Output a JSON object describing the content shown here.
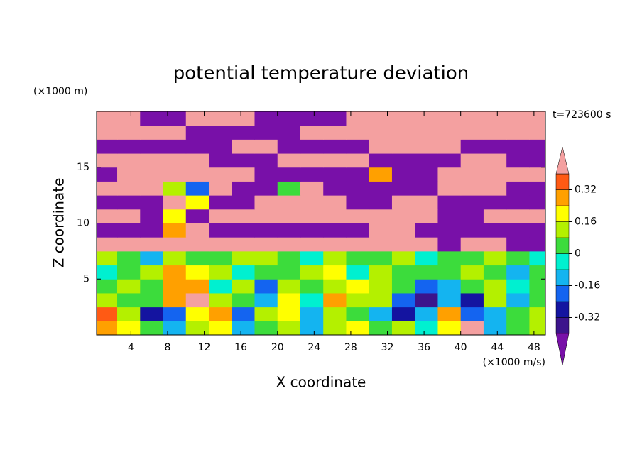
{
  "chart_data": {
    "type": "contour",
    "title": "potential temperature deviation",
    "x_label": "X coordinate",
    "y_label": "Z coordinate",
    "x_unit": "(×1000 m/s)",
    "y_unit": "(×1000 m)",
    "annotation": "t=723600 s",
    "xlim": [
      0.25,
      49.25
    ],
    "ylim": [
      0,
      20
    ],
    "xticks": [
      4,
      8,
      12,
      16,
      20,
      24,
      28,
      32,
      36,
      40,
      44,
      48
    ],
    "yticks": [
      5,
      10,
      15
    ],
    "x": [
      1.25,
      3.75,
      6.25,
      8.75,
      11.25,
      13.75,
      16.25,
      18.75,
      21.25,
      23.75,
      26.25,
      28.75,
      31.25,
      33.75,
      36.25,
      38.75,
      41.25,
      43.75,
      46.25,
      48.75
    ],
    "y": [
      0.625,
      1.875,
      3.125,
      4.375,
      5.625,
      6.875,
      8.125,
      9.375,
      10.625,
      11.875,
      13.125,
      14.375,
      15.625,
      16.875,
      18.125,
      19.375
    ],
    "z": [
      [
        0.3,
        0.2,
        0.05,
        -0.1,
        0.1,
        0.2,
        -0.1,
        0.05,
        0.15,
        -0.1,
        0.1,
        0.2,
        0.0,
        0.1,
        -0.05,
        0.2,
        0.5,
        -0.1,
        0.05,
        0.1
      ],
      [
        0.35,
        0.15,
        -0.25,
        -0.2,
        0.2,
        0.25,
        -0.2,
        0.1,
        0.2,
        -0.15,
        0.15,
        0.05,
        -0.1,
        -0.25,
        -0.1,
        0.3,
        -0.2,
        -0.1,
        0.05,
        0.1
      ],
      [
        0.15,
        0.05,
        0.0,
        0.25,
        0.45,
        0.1,
        0.0,
        -0.1,
        0.2,
        -0.05,
        0.25,
        0.1,
        0.15,
        -0.2,
        -0.35,
        -0.1,
        -0.25,
        0.1,
        -0.1,
        0.05
      ],
      [
        0.05,
        0.1,
        0.0,
        0.3,
        0.3,
        -0.05,
        0.1,
        -0.2,
        0.1,
        0.0,
        0.15,
        0.2,
        0.1,
        0.0,
        -0.2,
        -0.15,
        0.0,
        0.15,
        -0.05,
        0.0
      ],
      [
        -0.05,
        0.0,
        0.1,
        0.25,
        0.2,
        0.15,
        -0.05,
        0.0,
        0.05,
        0.1,
        0.2,
        -0.05,
        0.1,
        0.05,
        0.0,
        0.05,
        0.1,
        0.0,
        -0.1,
        0.0
      ],
      [
        0.1,
        0.05,
        -0.1,
        0.1,
        0.05,
        0.0,
        0.15,
        0.1,
        0.0,
        -0.05,
        0.1,
        0.05,
        0.0,
        0.1,
        -0.05,
        0.0,
        0.05,
        0.1,
        0.0,
        -0.05
      ],
      [
        0.5,
        0.5,
        0.5,
        0.5,
        0.5,
        0.5,
        0.5,
        0.5,
        0.5,
        0.5,
        0.5,
        0.5,
        0.5,
        0.5,
        0.5,
        -0.5,
        0.5,
        0.5,
        -0.5,
        -0.5
      ],
      [
        -0.5,
        -0.5,
        -0.5,
        0.3,
        0.5,
        -0.5,
        -0.5,
        -0.5,
        -0.5,
        -0.5,
        -0.5,
        -0.5,
        0.5,
        0.5,
        -0.5,
        -0.5,
        -0.5,
        -0.5,
        -0.5,
        -0.5
      ],
      [
        0.5,
        0.5,
        -0.5,
        0.2,
        -0.5,
        0.5,
        0.5,
        0.5,
        0.5,
        0.5,
        0.5,
        0.5,
        0.5,
        0.5,
        0.5,
        -0.5,
        -0.5,
        0.5,
        0.5,
        0.5
      ],
      [
        -0.5,
        -0.5,
        -0.5,
        0.5,
        0.2,
        -0.5,
        -0.5,
        0.5,
        0.5,
        0.5,
        0.5,
        -0.5,
        -0.5,
        0.5,
        0.5,
        -0.5,
        -0.5,
        -0.5,
        -0.5,
        -0.5
      ],
      [
        0.5,
        0.5,
        0.5,
        0.1,
        -0.2,
        0.5,
        -0.5,
        -0.5,
        0.0,
        0.5,
        -0.5,
        -0.5,
        -0.5,
        -0.5,
        -0.5,
        0.5,
        0.5,
        0.5,
        -0.5,
        -0.5
      ],
      [
        -0.5,
        0.5,
        0.5,
        0.5,
        0.5,
        0.5,
        0.5,
        -0.5,
        -0.5,
        -0.5,
        -0.5,
        -0.5,
        0.3,
        -0.5,
        -0.5,
        0.5,
        0.5,
        0.5,
        0.5,
        0.5
      ],
      [
        0.5,
        0.5,
        0.5,
        0.5,
        0.5,
        -0.5,
        -0.5,
        -0.5,
        0.5,
        0.5,
        0.5,
        0.5,
        -0.5,
        -0.5,
        -0.5,
        -0.5,
        0.5,
        0.5,
        -0.5,
        -0.5
      ],
      [
        -0.5,
        -0.5,
        -0.5,
        -0.5,
        -0.5,
        -0.5,
        0.5,
        0.5,
        -0.5,
        -0.5,
        -0.5,
        -0.5,
        0.5,
        0.5,
        0.5,
        0.5,
        -0.5,
        -0.5,
        -0.5,
        -0.5
      ],
      [
        0.5,
        0.5,
        0.5,
        0.5,
        -0.5,
        -0.5,
        -0.5,
        -0.5,
        -0.5,
        0.5,
        0.5,
        0.5,
        0.5,
        0.5,
        0.5,
        0.5,
        0.5,
        0.5,
        0.5,
        0.5
      ],
      [
        0.5,
        0.5,
        -0.5,
        -0.5,
        0.5,
        0.5,
        0.5,
        -0.5,
        -0.5,
        -0.5,
        -0.5,
        0.5,
        0.5,
        0.5,
        0.5,
        0.5,
        0.5,
        0.5,
        0.5,
        0.5
      ]
    ],
    "levels": [
      -0.4,
      -0.32,
      -0.24,
      -0.16,
      -0.08,
      0,
      0.08,
      0.16,
      0.24,
      0.32,
      0.4
    ],
    "colors": [
      "#7810a8",
      "#3c148c",
      "#1414a0",
      "#1464f0",
      "#14b4f0",
      "#00f0d0",
      "#3cdc3c",
      "#b4f000",
      "#ffff00",
      "#ffa000",
      "#ff5a14",
      "#f4a0a0"
    ],
    "colorbar_ticks": [
      -0.32,
      -0.16,
      0,
      0.16,
      0.32
    ]
  }
}
